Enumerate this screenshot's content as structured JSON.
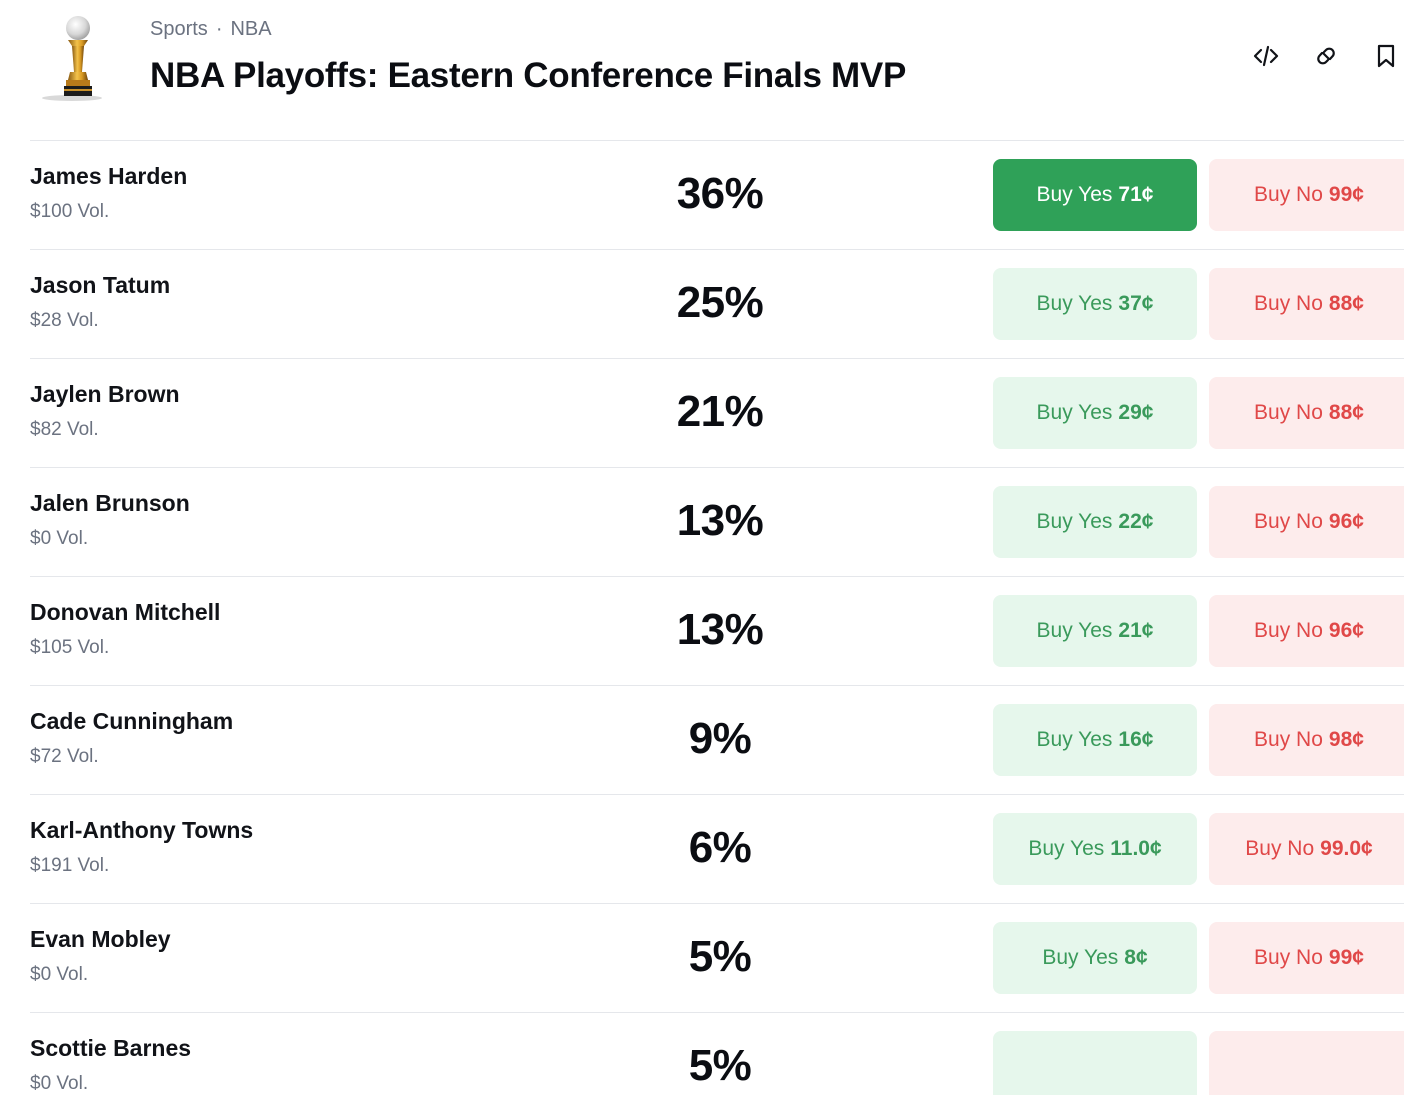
{
  "header": {
    "breadcrumb": [
      "Sports",
      "NBA"
    ],
    "separator": "·",
    "title": "NBA Playoffs: Eastern Conference Finals MVP"
  },
  "icons": {
    "embed": "code-icon",
    "link": "link-icon",
    "bookmark": "bookmark-icon",
    "event": "trophy-icon"
  },
  "colors": {
    "yes_text": "#3a9a5b",
    "yes_bg": "#e6f7ec",
    "yes_active_bg": "#2fa158",
    "no_text": "#e04848",
    "no_bg": "#fdecec"
  },
  "labels": {
    "yes": "Buy Yes",
    "no": "Buy No"
  },
  "rows": [
    {
      "name": "James Harden",
      "vol": "$100 Vol.",
      "pct": "36%",
      "yes": "71¢",
      "no": "99¢"
    },
    {
      "name": "Jason Tatum",
      "vol": "$28 Vol.",
      "pct": "25%",
      "yes": "37¢",
      "no": "88¢"
    },
    {
      "name": "Jaylen Brown",
      "vol": "$82 Vol.",
      "pct": "21%",
      "yes": "29¢",
      "no": "88¢"
    },
    {
      "name": "Jalen Brunson",
      "vol": "$0 Vol.",
      "pct": "13%",
      "yes": "22¢",
      "no": "96¢"
    },
    {
      "name": "Donovan Mitchell",
      "vol": "$105 Vol.",
      "pct": "13%",
      "yes": "21¢",
      "no": "96¢"
    },
    {
      "name": "Cade Cunningham",
      "vol": "$72 Vol.",
      "pct": "9%",
      "yes": "16¢",
      "no": "98¢"
    },
    {
      "name": "Karl-Anthony Towns",
      "vol": "$191 Vol.",
      "pct": "6%",
      "yes": "11.0¢",
      "no": "99.0¢"
    },
    {
      "name": "Evan Mobley",
      "vol": "$0 Vol.",
      "pct": "5%",
      "yes": "8¢",
      "no": "99¢"
    },
    {
      "name": "Scottie Barnes",
      "vol": "$0 Vol.",
      "pct": "5%",
      "yes": "",
      "no": ""
    }
  ]
}
